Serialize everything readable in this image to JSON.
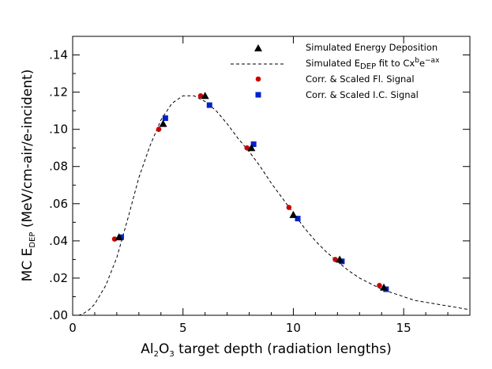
{
  "chart_data": {
    "type": "scatter",
    "xlabel": {
      "pre": "Al",
      "sub1": "2",
      "mid": "O",
      "sub2": "3",
      "post": " target depth (radiation lengths)"
    },
    "ylabel": {
      "pre": "MC  E",
      "sub": "DEP",
      "post": "  (MeV/cm-air/e-incident)"
    },
    "xlim": [
      0,
      18
    ],
    "ylim": [
      0,
      0.15
    ],
    "x_ticks": [
      0,
      5,
      10,
      15
    ],
    "x_tick_labels": [
      "0",
      "5",
      "10",
      "15"
    ],
    "y_ticks": [
      0,
      0.02,
      0.04,
      0.06,
      0.08,
      0.1,
      0.12,
      0.14
    ],
    "y_tick_labels": [
      ".00",
      ".02",
      ".04",
      ".06",
      ".08",
      ".10",
      ".12",
      ".14"
    ],
    "legend_position": "top-right",
    "colors": {
      "triangle": "#000000",
      "fl_signal": "#cc0000",
      "ic_signal": "#0022cc",
      "fit_line": "#000000"
    },
    "series": [
      {
        "name": "Simulated Energy Deposition",
        "legend": {
          "text": "Simulated Energy Deposition"
        },
        "marker": "triangle",
        "x": [
          2.1,
          4.1,
          6.0,
          8.1,
          10.0,
          12.1,
          14.1
        ],
        "y": [
          0.042,
          0.103,
          0.118,
          0.09,
          0.054,
          0.03,
          0.015
        ]
      },
      {
        "name": "Simulated E_DEP fit to Cx^b e^-ax",
        "legend": {
          "pre": "Simulated E",
          "sub": "DEP",
          "mid": " fit to Cx",
          "sup1": "b",
          "mid2": "e",
          "sup2": "−ax"
        },
        "marker": "dashed-line",
        "x": [
          0,
          0.3,
          0.5,
          0.75,
          1.0,
          1.5,
          2.0,
          2.5,
          3.0,
          3.5,
          4.0,
          4.5,
          5.0,
          5.5,
          6.0,
          6.5,
          7.0,
          7.5,
          8.0,
          8.5,
          9.0,
          9.5,
          10.0,
          10.5,
          11.0,
          11.5,
          12.0,
          12.5,
          13.0,
          13.5,
          14.0,
          14.5,
          15.0,
          15.5,
          16.0,
          16.5,
          17.0,
          17.5,
          18.0
        ],
        "y": [
          0,
          0.0001,
          0.001,
          0.003,
          0.006,
          0.016,
          0.031,
          0.052,
          0.074,
          0.091,
          0.105,
          0.114,
          0.118,
          0.118,
          0.115,
          0.11,
          0.103,
          0.095,
          0.088,
          0.08,
          0.071,
          0.063,
          0.055,
          0.047,
          0.04,
          0.034,
          0.029,
          0.024,
          0.02,
          0.017,
          0.014,
          0.012,
          0.01,
          0.008,
          0.007,
          0.006,
          0.005,
          0.004,
          0.003
        ]
      },
      {
        "name": "Corr. & Scaled Fl. Signal",
        "legend": {
          "text": "Corr. & Scaled Fl. Signal"
        },
        "marker": "circle",
        "x": [
          1.9,
          3.9,
          5.8,
          7.9,
          9.8,
          11.9,
          13.9
        ],
        "y": [
          0.041,
          0.1,
          0.118,
          0.09,
          0.058,
          0.03,
          0.016
        ]
      },
      {
        "name": "Corr. & Scaled I.C. Signal",
        "legend": {
          "text": "Corr. & Scaled I.C. Signal"
        },
        "marker": "square",
        "x": [
          2.2,
          4.2,
          6.2,
          8.2,
          10.2,
          12.2,
          14.2
        ],
        "y": [
          0.042,
          0.106,
          0.113,
          0.092,
          0.052,
          0.029,
          0.014
        ]
      }
    ]
  }
}
